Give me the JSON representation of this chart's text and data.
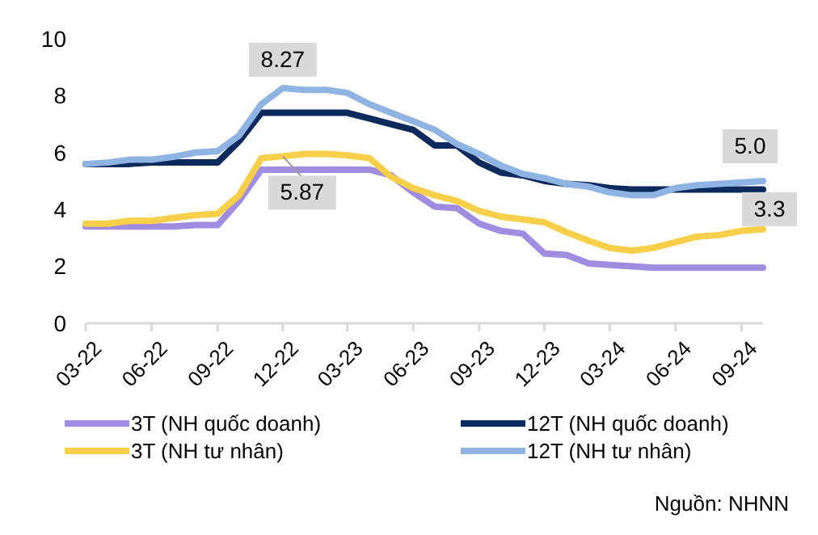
{
  "chart_data": {
    "type": "line",
    "x": [
      "2022-03",
      "2022-04",
      "2022-05",
      "2022-06",
      "2022-07",
      "2022-08",
      "2022-09",
      "2022-10",
      "2022-11",
      "2022-12",
      "2023-01",
      "2023-02",
      "2023-03",
      "2023-04",
      "2023-05",
      "2023-06",
      "2023-07",
      "2023-08",
      "2023-09",
      "2023-10",
      "2023-11",
      "2023-12",
      "2024-01",
      "2024-02",
      "2024-03",
      "2024-04",
      "2024-05",
      "2024-06",
      "2024-07",
      "2024-08",
      "2024-09",
      "2024-10"
    ],
    "series": [
      {
        "name": "3T (NH quốc doanh)",
        "color": "#a08ce0",
        "values": [
          3.4,
          3.4,
          3.4,
          3.4,
          3.4,
          3.45,
          3.45,
          4.3,
          5.4,
          5.4,
          5.4,
          5.4,
          5.4,
          5.4,
          5.2,
          4.6,
          4.1,
          4.05,
          3.5,
          3.25,
          3.15,
          2.45,
          2.4,
          2.1,
          2.05,
          2,
          1.95,
          1.95,
          1.95,
          1.95,
          1.95,
          1.95
        ]
      },
      {
        "name": "12T (NH quốc doanh)",
        "color": "#0d2a5e",
        "values": [
          5.6,
          5.6,
          5.6,
          5.65,
          5.65,
          5.65,
          5.65,
          6.4,
          7.4,
          7.4,
          7.4,
          7.4,
          7.4,
          7.2,
          7,
          6.8,
          6.25,
          6.25,
          5.65,
          5.3,
          5.2,
          5,
          4.9,
          4.85,
          4.75,
          4.7,
          4.7,
          4.7,
          4.7,
          4.7,
          4.7,
          4.7
        ]
      },
      {
        "name": "3T (NH tư nhân)",
        "color": "#f7cf4b",
        "values": [
          3.5,
          3.5,
          3.6,
          3.6,
          3.7,
          3.8,
          3.85,
          4.5,
          5.8,
          5.87,
          5.95,
          5.95,
          5.9,
          5.8,
          5.15,
          4.75,
          4.5,
          4.3,
          3.95,
          3.75,
          3.65,
          3.55,
          3.2,
          2.9,
          2.65,
          2.55,
          2.65,
          2.85,
          3.05,
          3.1,
          3.25,
          3.3
        ]
      },
      {
        "name": "12T (NH tư nhân)",
        "color": "#8fb4e3",
        "values": [
          5.6,
          5.65,
          5.75,
          5.75,
          5.85,
          6,
          6.05,
          6.6,
          7.7,
          8.27,
          8.2,
          8.2,
          8.1,
          7.7,
          7.4,
          7.1,
          6.8,
          6.3,
          5.95,
          5.55,
          5.25,
          5.1,
          4.9,
          4.8,
          4.6,
          4.5,
          4.5,
          4.75,
          4.85,
          4.9,
          4.95,
          5
        ]
      }
    ],
    "xlim": [
      "2022-03",
      "2024-10"
    ],
    "xticks": [
      {
        "value": "2022-03",
        "label": "03-22"
      },
      {
        "value": "2022-06",
        "label": "06-22"
      },
      {
        "value": "2022-09",
        "label": "09-22"
      },
      {
        "value": "2022-12",
        "label": "12-22"
      },
      {
        "value": "2023-03",
        "label": "03-23"
      },
      {
        "value": "2023-06",
        "label": "06-23"
      },
      {
        "value": "2023-09",
        "label": "09-23"
      },
      {
        "value": "2023-12",
        "label": "12-23"
      },
      {
        "value": "2024-03",
        "label": "03-24"
      },
      {
        "value": "2024-06",
        "label": "06-24"
      },
      {
        "value": "2024-09",
        "label": "09-24"
      }
    ],
    "ylim": [
      0,
      10
    ],
    "yticks": [
      0,
      2,
      4,
      6,
      8,
      10
    ],
    "grid": false,
    "legend": "bottom",
    "marker": "none",
    "line_style": "solid",
    "annotations": [
      {
        "text": "8.27",
        "x": "2022-12",
        "y": 8.27
      },
      {
        "text": "5.87",
        "x": "2022-12",
        "y": 5.87
      },
      {
        "text": "5.0",
        "x": "2024-10",
        "y": 5
      },
      {
        "text": "3.3",
        "x": "2024-10",
        "y": 3.3
      },
      "Nguồn: NHNN"
    ]
  }
}
